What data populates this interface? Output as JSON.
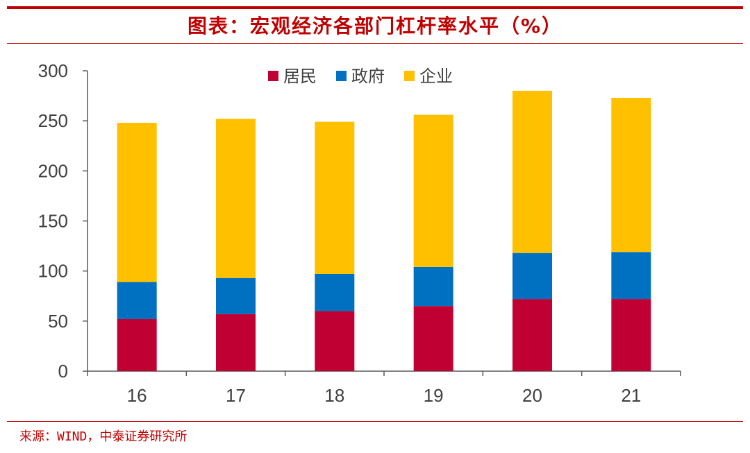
{
  "colors": {
    "accent": "#c00000",
    "residents": "#c00032",
    "government": "#0070c0",
    "enterprise": "#ffc000",
    "axis": "#595959",
    "text": "#404040"
  },
  "header": {
    "title": "图表：宏观经济各部门杠杆率水平（%）"
  },
  "footer": {
    "source": "来源：WIND，中泰证券研究所"
  },
  "chart_data": {
    "type": "bar",
    "stacked": true,
    "title": "图表：宏观经济各部门杠杆率水平（%）",
    "xlabel": "",
    "ylabel": "",
    "categories": [
      "16",
      "17",
      "18",
      "19",
      "20",
      "21"
    ],
    "series": [
      {
        "name": "居民",
        "color": "#c00032",
        "values": [
          52,
          57,
          60,
          65,
          72,
          72
        ]
      },
      {
        "name": "政府",
        "color": "#0070c0",
        "values": [
          37,
          36,
          37,
          39,
          46,
          47
        ]
      },
      {
        "name": "企业",
        "color": "#ffc000",
        "values": [
          159,
          159,
          152,
          152,
          162,
          154
        ]
      }
    ],
    "ylim": [
      0,
      300
    ],
    "yticks": [
      "0",
      "50",
      "100",
      "150",
      "200",
      "250",
      "300"
    ],
    "grid": false,
    "legend": "top-center"
  }
}
